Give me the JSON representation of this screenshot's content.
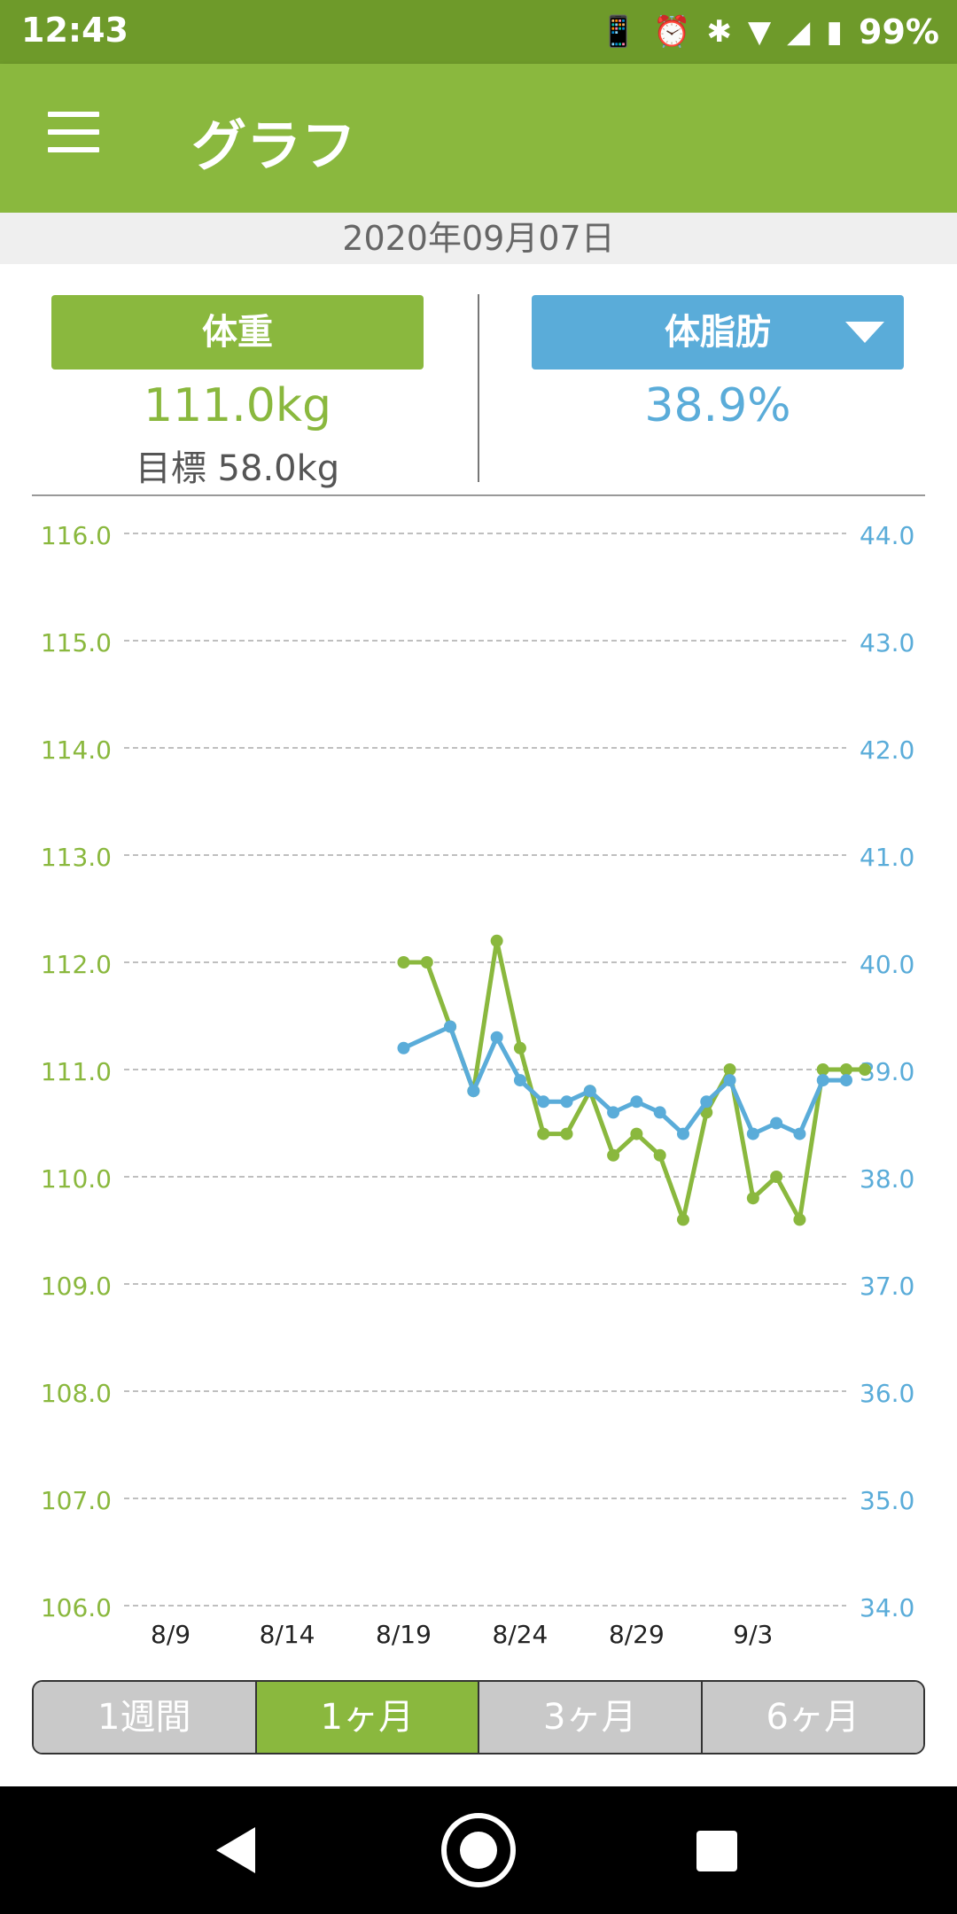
{
  "status_bar": {
    "time": "12:43",
    "battery": "99%",
    "icons": [
      "nfc-icon",
      "alarm-icon",
      "bluetooth-icon",
      "wifi-icon",
      "signal-icon",
      "battery-icon"
    ]
  },
  "app_bar": {
    "title": "グラフ"
  },
  "date": "2020年09月07日",
  "metrics": {
    "weight": {
      "label": "体重",
      "value": "111.0kg",
      "goal": "目標 58.0kg",
      "color": "#8ab83e"
    },
    "fat": {
      "label": "体脂肪",
      "value": "38.9%",
      "color": "#5aacd9"
    }
  },
  "chart_data": {
    "type": "line",
    "x_tick_labels": [
      "8/9",
      "8/14",
      "8/19",
      "8/24",
      "8/29",
      "9/3"
    ],
    "x_tick_days": [
      0,
      5,
      10,
      15,
      20,
      25
    ],
    "x_range": [
      -2,
      29
    ],
    "left_axis": {
      "ticks": [
        "116.0",
        "115.0",
        "114.0",
        "113.0",
        "112.0",
        "111.0",
        "110.0",
        "109.0",
        "108.0",
        "107.0",
        "106.0"
      ],
      "range": [
        106,
        116
      ],
      "color": "#8ab83e"
    },
    "right_axis": {
      "ticks": [
        "44.0",
        "43.0",
        "42.0",
        "41.0",
        "40.0",
        "39.0",
        "38.0",
        "37.0",
        "36.0",
        "35.0",
        "34.0"
      ],
      "range": [
        34,
        44
      ],
      "color": "#5aacd9"
    },
    "grid": true,
    "series": [
      {
        "color": "#8ab83e",
        "axis": "left",
        "x": [
          10,
          11,
          12,
          13,
          14,
          15,
          16,
          17,
          18,
          19,
          20,
          21,
          22,
          23,
          24,
          25,
          26,
          27,
          28,
          29,
          29.8
        ],
        "y": [
          112.0,
          112.0,
          111.4,
          110.8,
          112.2,
          111.2,
          110.4,
          110.4,
          110.8,
          110.2,
          110.4,
          110.2,
          109.6,
          110.6,
          111.0,
          109.8,
          110.0,
          109.6,
          111.0,
          111.0,
          111.0
        ]
      },
      {
        "color": "#5aacd9",
        "axis": "right",
        "x": [
          10,
          12,
          13,
          14,
          15,
          16,
          17,
          18,
          19,
          20,
          21,
          22,
          23,
          24,
          25,
          26,
          27,
          28,
          29
        ],
        "y": [
          39.2,
          39.4,
          38.8,
          39.3,
          38.9,
          38.7,
          38.7,
          38.8,
          38.6,
          38.7,
          38.6,
          38.4,
          38.7,
          38.9,
          38.4,
          38.5,
          38.4,
          38.9,
          38.9
        ]
      }
    ]
  },
  "period_tabs": [
    {
      "label": "1週間",
      "active": false
    },
    {
      "label": "1ヶ月",
      "active": true
    },
    {
      "label": "3ヶ月",
      "active": false
    },
    {
      "label": "6ヶ月",
      "active": false
    }
  ]
}
